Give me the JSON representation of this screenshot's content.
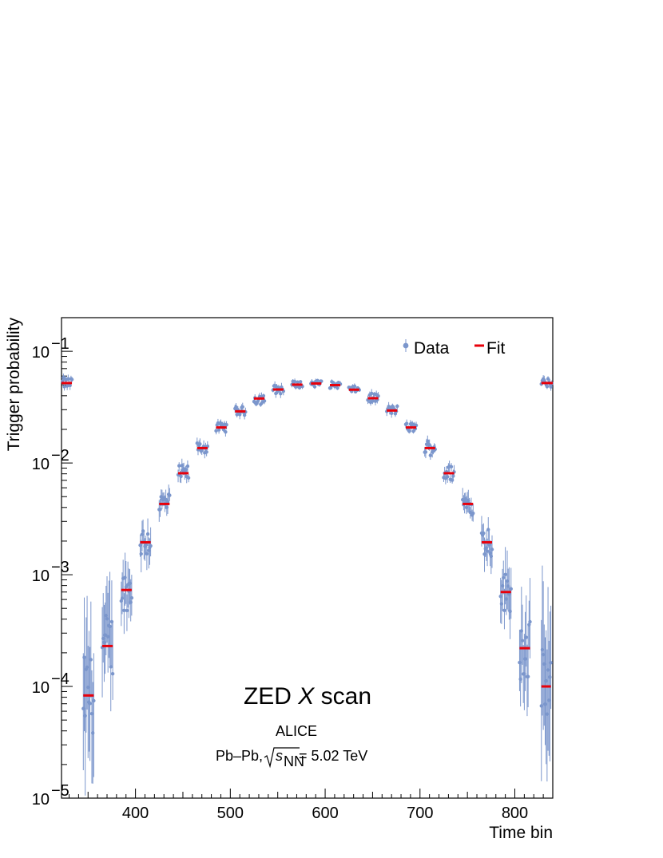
{
  "chart_data": {
    "type": "scatter",
    "xlabel": "Time bin",
    "ylabel": "Trigger probability",
    "xlim": [
      322,
      840
    ],
    "ylim": [
      1e-05,
      0.2
    ],
    "log_y": true,
    "grid": false,
    "legend_position": "top-right",
    "x_ticks": [
      400,
      500,
      600,
      700,
      800
    ],
    "y_ticks": [
      {
        "value": 1e-05,
        "base": "10",
        "exp": "−5"
      },
      {
        "value": 0.0001,
        "base": "10",
        "exp": "−4"
      },
      {
        "value": 0.001,
        "base": "10",
        "exp": "−3"
      },
      {
        "value": 0.01,
        "base": "10",
        "exp": "−2"
      },
      {
        "value": 0.1,
        "base": "10",
        "exp": "−1"
      }
    ],
    "annotations": {
      "main_pre": "ZED ",
      "main_italic": "X",
      "main_post": " scan",
      "experiment": "ALICE",
      "system_pre": "Pb–Pb, ",
      "sqrt_var": "s",
      "sqrt_sub": "NN",
      "system_post": " = 5.02 TeV"
    },
    "series": [
      {
        "name": "Data",
        "style": "markers",
        "color": "#7b96cc",
        "groups": [
          {
            "x_start": 323,
            "x_end": 333,
            "y": 0.052,
            "scatter": 0.05,
            "err": 0.03
          },
          {
            "x_start": 345,
            "x_end": 356,
            "y": 8.5e-05,
            "scatter": 0.35,
            "err": 0.55
          },
          {
            "x_start": 365,
            "x_end": 376,
            "y": 0.00023,
            "scatter": 0.3,
            "err": 0.35
          },
          {
            "x_start": 385,
            "x_end": 396,
            "y": 0.00072,
            "scatter": 0.18,
            "err": 0.18
          },
          {
            "x_start": 405,
            "x_end": 416,
            "y": 0.002,
            "scatter": 0.15,
            "err": 0.12
          },
          {
            "x_start": 425,
            "x_end": 436,
            "y": 0.0043,
            "scatter": 0.1,
            "err": 0.08
          },
          {
            "x_start": 445,
            "x_end": 456,
            "y": 0.0081,
            "scatter": 0.07,
            "err": 0.05
          },
          {
            "x_start": 465,
            "x_end": 476,
            "y": 0.0137,
            "scatter": 0.05,
            "err": 0.04
          },
          {
            "x_start": 485,
            "x_end": 496,
            "y": 0.0208,
            "scatter": 0.04,
            "err": 0.03
          },
          {
            "x_start": 505,
            "x_end": 516,
            "y": 0.0291,
            "scatter": 0.04,
            "err": 0.03
          },
          {
            "x_start": 525,
            "x_end": 536,
            "y": 0.0375,
            "scatter": 0.05,
            "err": 0.03
          },
          {
            "x_start": 545,
            "x_end": 556,
            "y": 0.0455,
            "scatter": 0.04,
            "err": 0.03
          },
          {
            "x_start": 565,
            "x_end": 576,
            "y": 0.0505,
            "scatter": 0.03,
            "err": 0.02
          },
          {
            "x_start": 585,
            "x_end": 596,
            "y": 0.0515,
            "scatter": 0.03,
            "err": 0.02
          },
          {
            "x_start": 605,
            "x_end": 616,
            "y": 0.05,
            "scatter": 0.03,
            "err": 0.02
          },
          {
            "x_start": 625,
            "x_end": 636,
            "y": 0.0455,
            "scatter": 0.03,
            "err": 0.02
          },
          {
            "x_start": 645,
            "x_end": 656,
            "y": 0.0383,
            "scatter": 0.04,
            "err": 0.03
          },
          {
            "x_start": 665,
            "x_end": 676,
            "y": 0.0298,
            "scatter": 0.04,
            "err": 0.03
          },
          {
            "x_start": 685,
            "x_end": 696,
            "y": 0.0208,
            "scatter": 0.04,
            "err": 0.03
          },
          {
            "x_start": 705,
            "x_end": 716,
            "y": 0.0137,
            "scatter": 0.07,
            "err": 0.04
          },
          {
            "x_start": 725,
            "x_end": 736,
            "y": 0.0081,
            "scatter": 0.07,
            "err": 0.05
          },
          {
            "x_start": 745,
            "x_end": 756,
            "y": 0.0043,
            "scatter": 0.1,
            "err": 0.08
          },
          {
            "x_start": 765,
            "x_end": 776,
            "y": 0.002,
            "scatter": 0.15,
            "err": 0.12
          },
          {
            "x_start": 785,
            "x_end": 796,
            "y": 0.0007,
            "scatter": 0.18,
            "err": 0.2
          },
          {
            "x_start": 805,
            "x_end": 816,
            "y": 0.00022,
            "scatter": 0.3,
            "err": 0.35
          },
          {
            "x_start": 828,
            "x_end": 838,
            "y": 0.0001,
            "scatter": 0.35,
            "err": 0.55
          },
          {
            "x_start": 828,
            "x_end": 839,
            "y": 0.052,
            "scatter": 0.04,
            "err": 0.03
          }
        ]
      },
      {
        "name": "Fit",
        "style": "segments",
        "color": "#e8000b",
        "segments": [
          {
            "x0": 322,
            "x1": 333,
            "y": 0.052
          },
          {
            "x0": 345,
            "x1": 356,
            "y": 8.3e-05
          },
          {
            "x0": 365,
            "x1": 376,
            "y": 0.00023
          },
          {
            "x0": 385,
            "x1": 396,
            "y": 0.00073
          },
          {
            "x0": 405,
            "x1": 416,
            "y": 0.00195
          },
          {
            "x0": 425,
            "x1": 436,
            "y": 0.0043
          },
          {
            "x0": 445,
            "x1": 456,
            "y": 0.0081
          },
          {
            "x0": 465,
            "x1": 476,
            "y": 0.0136
          },
          {
            "x0": 485,
            "x1": 496,
            "y": 0.0208
          },
          {
            "x0": 505,
            "x1": 516,
            "y": 0.029
          },
          {
            "x0": 525,
            "x1": 536,
            "y": 0.0378
          },
          {
            "x0": 545,
            "x1": 556,
            "y": 0.0455
          },
          {
            "x0": 565,
            "x1": 576,
            "y": 0.0503
          },
          {
            "x0": 585,
            "x1": 596,
            "y": 0.0515
          },
          {
            "x0": 605,
            "x1": 616,
            "y": 0.0498
          },
          {
            "x0": 625,
            "x1": 636,
            "y": 0.0453
          },
          {
            "x0": 645,
            "x1": 656,
            "y": 0.038
          },
          {
            "x0": 665,
            "x1": 676,
            "y": 0.0295
          },
          {
            "x0": 685,
            "x1": 696,
            "y": 0.0208
          },
          {
            "x0": 705,
            "x1": 716,
            "y": 0.0136
          },
          {
            "x0": 725,
            "x1": 736,
            "y": 0.0081
          },
          {
            "x0": 745,
            "x1": 756,
            "y": 0.0043
          },
          {
            "x0": 765,
            "x1": 776,
            "y": 0.00195
          },
          {
            "x0": 785,
            "x1": 796,
            "y": 0.0007
          },
          {
            "x0": 805,
            "x1": 816,
            "y": 0.00022
          },
          {
            "x0": 828,
            "x1": 838,
            "y": 0.0001
          },
          {
            "x0": 828,
            "x1": 840,
            "y": 0.052
          }
        ]
      }
    ]
  }
}
